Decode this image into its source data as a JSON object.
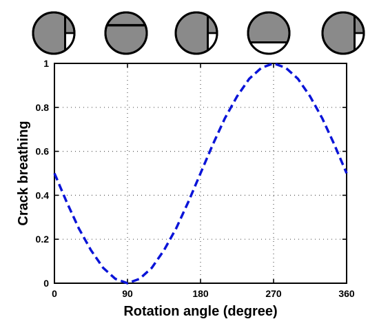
{
  "chart_data": {
    "type": "line",
    "xlabel": "Rotation angle (degree)",
    "ylabel": "Crack breathing",
    "xlim": [
      0,
      360
    ],
    "ylim": [
      0,
      1
    ],
    "xticks": [
      "0",
      "90",
      "180",
      "270",
      "360"
    ],
    "yticks": [
      "0",
      "0.2",
      "0.4",
      "0.6",
      "0.8",
      "1"
    ],
    "grid": true,
    "line_style": "dashed",
    "series": [
      {
        "color": "#0a14d8",
        "x": [
          0,
          15,
          30,
          45,
          60,
          75,
          90,
          105,
          120,
          135,
          150,
          165,
          180,
          195,
          210,
          225,
          240,
          255,
          270,
          285,
          300,
          315,
          330,
          345,
          360
        ],
        "y": [
          0.5,
          0.37,
          0.25,
          0.15,
          0.07,
          0.02,
          0.0,
          0.02,
          0.07,
          0.15,
          0.25,
          0.37,
          0.5,
          0.63,
          0.75,
          0.85,
          0.93,
          0.98,
          1.0,
          0.98,
          0.93,
          0.85,
          0.75,
          0.63,
          0.5
        ]
      }
    ],
    "crack_state_icons": [
      {
        "angle": 0,
        "state": "half-open"
      },
      {
        "angle": 90,
        "state": "closed"
      },
      {
        "angle": 180,
        "state": "half-open"
      },
      {
        "angle": 270,
        "state": "open"
      },
      {
        "angle": 360,
        "state": "half-open"
      }
    ]
  }
}
